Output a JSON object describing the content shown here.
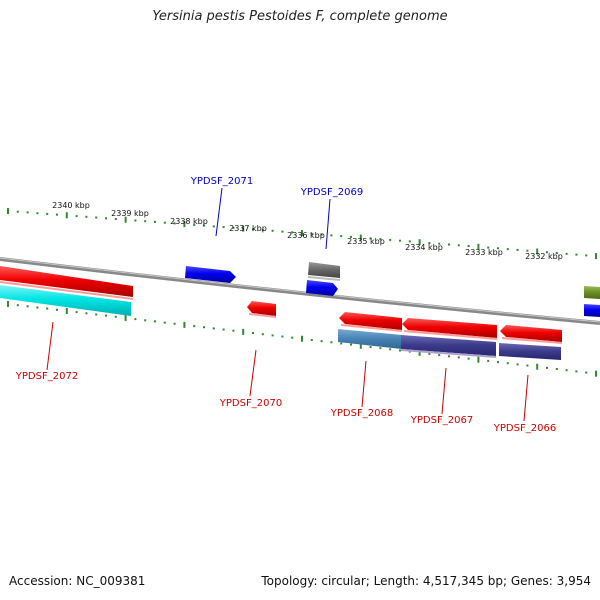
{
  "title": "Yersinia pestis Pestoides F, complete genome",
  "footer": {
    "accession": "Accession: NC_009381",
    "topology": "Topology: circular; Length: 4,517,345 bp; Genes: 3,954"
  },
  "ticks": [
    {
      "label": "2340 kbp"
    },
    {
      "label": "2339 kbp"
    },
    {
      "label": "2338 kbp"
    },
    {
      "label": "2337 kbp"
    },
    {
      "label": "2336 kbp"
    },
    {
      "label": "2335 kbp"
    },
    {
      "label": "2334 kbp"
    },
    {
      "label": "2333 kbp"
    },
    {
      "label": "2332 kbp"
    }
  ],
  "genes_top": [
    {
      "name": "YPDSF_2071",
      "color": "#0000cc"
    },
    {
      "name": "YPDSF_2069",
      "color": "#0000cc"
    }
  ],
  "genes_bottom": [
    {
      "name": "YPDSF_2072",
      "color": "#cc0000"
    },
    {
      "name": "YPDSF_2070",
      "color": "#cc0000"
    },
    {
      "name": "YPDSF_2068",
      "color": "#cc0000"
    },
    {
      "name": "YPDSF_2067",
      "color": "#cc0000"
    },
    {
      "name": "YPDSF_2066",
      "color": "#cc0000"
    }
  ],
  "colors": {
    "backbone": "#7f7f7f",
    "ruler": "#2e8b2e",
    "forward_gene": "#0000ee",
    "reverse_gene": "#ee0000",
    "cyan_feature": "#00e5e5",
    "steelblue_feature": "#4682b4",
    "navy_feature": "#3a3a8a",
    "grey_feature": "#666666",
    "olive_feature": "#6b8e23"
  }
}
